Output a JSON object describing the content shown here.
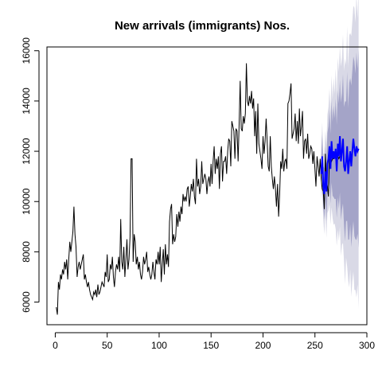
{
  "chart_data": {
    "type": "line",
    "title": "New arrivals (immigrants) Nos.",
    "xlabel": "",
    "ylabel": "",
    "xlim": [
      -8,
      300
    ],
    "ylim": [
      5100,
      16150
    ],
    "x_ticks": [
      0,
      50,
      100,
      150,
      200,
      250,
      300
    ],
    "y_ticks": [
      6000,
      8000,
      10000,
      12000,
      14000,
      16000
    ],
    "grid": false,
    "legend": "none",
    "colors": {
      "history": "#000000",
      "forecast": "#0000ff",
      "interval_outer": "#d9d9e6",
      "interval_inner": "#a4a4c8"
    },
    "series": [
      {
        "values": [
          5800,
          5500,
          6800,
          6500,
          7100,
          6900,
          7300,
          7100,
          7600,
          7300,
          7700,
          6900,
          7700,
          8400,
          8000,
          8400,
          8800,
          9800,
          8700,
          8200,
          7000,
          7400,
          7600,
          7300,
          7500,
          7700,
          7900,
          6900,
          7100,
          6800,
          6600,
          6800,
          6500,
          6300,
          6200,
          6100,
          6400,
          6300,
          6500,
          6200,
          6700,
          6300,
          6400,
          6600,
          6800,
          6700,
          6600,
          7200,
          7000,
          7900,
          6800,
          6900,
          7500,
          7300,
          7800,
          7000,
          6600,
          7200,
          7500,
          7300,
          7800,
          7200,
          9300,
          7600,
          7300,
          8200,
          7000,
          7700,
          8500,
          7300,
          7700,
          8600,
          11700,
          11700,
          7600,
          8700,
          8400,
          7500,
          7800,
          7300,
          7600,
          7100,
          6900,
          7200,
          7800,
          7500,
          7700,
          8000,
          7200,
          7400,
          7100,
          6900,
          7100,
          7600,
          7200,
          6900,
          7700,
          7500,
          8000,
          7500,
          8200,
          6800,
          7500,
          8100,
          7100,
          8300,
          7500,
          7900,
          7400,
          9200,
          9700,
          9900,
          8300,
          8700,
          8400,
          8600,
          9500,
          9000,
          9600,
          9200,
          9800,
          9500,
          10300,
          10000,
          10200,
          10000,
          10500,
          10600,
          9800,
          10200,
          10700,
          10400,
          10900,
          10200,
          9900,
          11700,
          10600,
          10900,
          10300,
          10600,
          11600,
          10700,
          10900,
          11100,
          10900,
          10300,
          10800,
          11000,
          10600,
          11500,
          10700,
          11600,
          12200,
          11100,
          11700,
          11300,
          11800,
          10500,
          11900,
          12200,
          10800,
          11600,
          11600,
          11800,
          11100,
          12000,
          12500,
          12400,
          11400,
          13200,
          13000,
          12800,
          11700,
          12900,
          12800,
          11600,
          13100,
          14800,
          12900,
          12800,
          13400,
          13100,
          13500,
          15500,
          14000,
          13800,
          14200,
          13900,
          14400,
          13700,
          14100,
          12600,
          13600,
          11900,
          13900,
          12300,
          12000,
          11700,
          11300,
          12600,
          11900,
          12400,
          13300,
          12400,
          11400,
          11200,
          12600,
          11400,
          10900,
          10500,
          11000,
          10500,
          9800,
          10700,
          9400,
          10300,
          11600,
          11300,
          12100,
          11200,
          11600,
          11700,
          11300,
          13900,
          14000,
          14300,
          14700,
          12500,
          12700,
          12900,
          13500,
          12400,
          13200,
          12300,
          13700,
          12600,
          13000,
          13600,
          11700,
          12400,
          12500,
          11900,
          12700,
          11700,
          11900,
          12200,
          12100,
          11500,
          12000,
          11300,
          10600,
          11800,
          11400,
          11000,
          11700,
          10900,
          10500,
          10400,
          9700,
          11900,
          10800,
          10600,
          10200,
          11900,
          11800,
          11600,
          11700,
          11700,
          11800,
          11800,
          11900,
          11800,
          11700,
          11800
        ]
      },
      {
        "x_start": 256,
        "values": [
          11100,
          11800,
          10600,
          10300,
          11200,
          10400,
          11500,
          11700,
          12200,
          11300,
          12400,
          11700,
          12000,
          11700,
          12100,
          11200,
          12300,
          11800,
          12600,
          11600,
          12000,
          12500,
          11400,
          11200,
          11600,
          12200,
          11100,
          11600,
          12000,
          11400,
          12000,
          12500,
          12100,
          11800,
          12200,
          12000,
          12100
        ]
      }
    ],
    "interval": {
      "x_start": 256,
      "outer_half_width": [
        1100,
        1230,
        1360,
        1490,
        1620,
        1750,
        1880,
        2010,
        2140,
        2270,
        2400,
        2530,
        2660,
        2790,
        2920,
        3050,
        3180,
        3310,
        3440,
        3570,
        3700,
        3830,
        3960,
        4090,
        4220,
        4350,
        4480,
        4610,
        4740,
        4870,
        5000,
        5130,
        5260,
        5390,
        5520,
        5650,
        5780
      ],
      "inner_half_width": [
        700,
        780,
        860,
        940,
        1020,
        1100,
        1180,
        1260,
        1340,
        1420,
        1500,
        1580,
        1660,
        1740,
        1820,
        1900,
        1980,
        2060,
        2140,
        2220,
        2300,
        2380,
        2460,
        2540,
        2620,
        2700,
        2780,
        2860,
        2940,
        3020,
        3100,
        3180,
        3260,
        3340,
        3420,
        3500,
        3580
      ]
    }
  }
}
